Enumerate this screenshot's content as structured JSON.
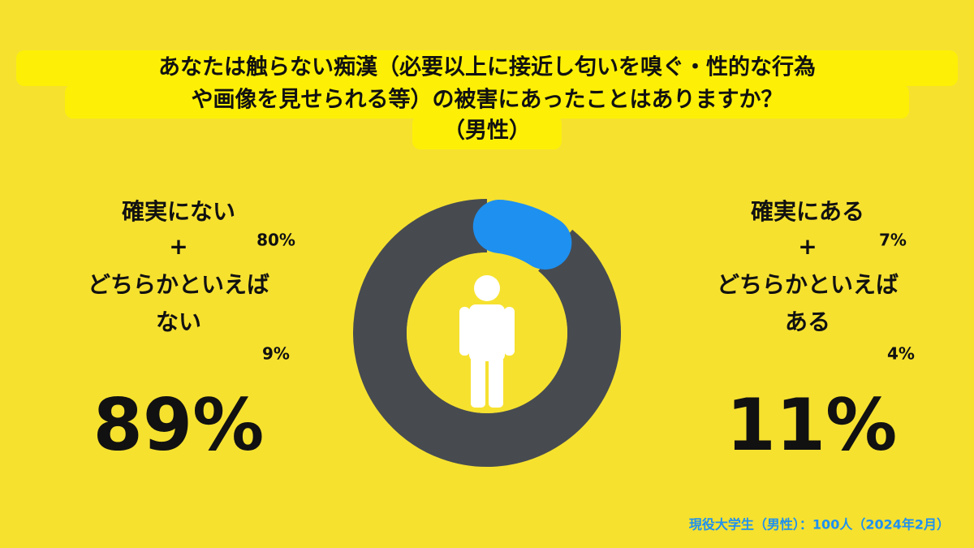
{
  "chart_data": {
    "type": "donut",
    "title": [
      "あなたは触らない痴漢（必要以上に接近し匂いを嗅ぐ・性的な行為",
      "や画像を見せられる等）の被害にあったことはありますか？",
      "（男性）"
    ],
    "values": [
      89,
      11
    ],
    "value_labels": [
      "89%",
      "11%"
    ],
    "colors": [
      "#474b50",
      "#1e90f0"
    ],
    "joiner": "+",
    "breakdown": [
      {
        "labels": [
          [
            "確実にない"
          ],
          [
            "どちらかといえば",
            "ない"
          ]
        ],
        "values": [
          80,
          9
        ],
        "value_labels": [
          "80%",
          "9%"
        ]
      },
      {
        "labels": [
          [
            "確実にある"
          ],
          [
            "どちらかといえば",
            "ある"
          ]
        ],
        "values": [
          7,
          4
        ],
        "value_labels": [
          "7%",
          "4%"
        ]
      }
    ],
    "note": "現役大学生（男性）：100人（2024年2月）"
  }
}
